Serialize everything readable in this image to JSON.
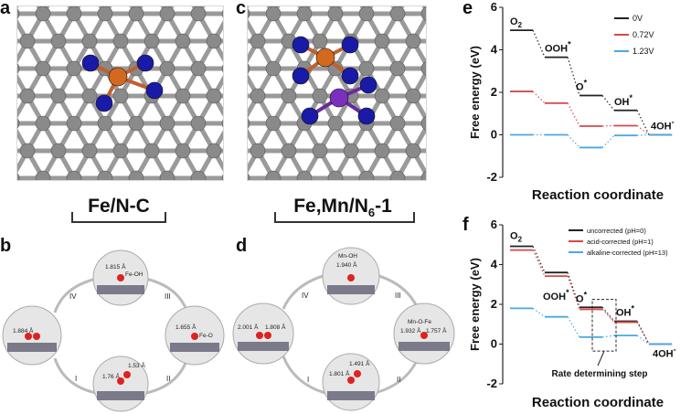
{
  "panels": {
    "a": {
      "letter": "a",
      "caption": "Fe/N-C"
    },
    "b": {
      "letter": "b",
      "labels": [
        "1.815 Å",
        "Fe-OH",
        "1.884 Å",
        "1.655 Å",
        "Fe-O",
        "1.53 Å",
        "1.76 Å"
      ],
      "steps": [
        "I",
        "II",
        "III",
        "IV"
      ]
    },
    "c": {
      "letter": "c",
      "caption_main": "Fe,Mn/N",
      "caption_sub": "6",
      "caption_tail": "-1"
    },
    "d": {
      "letter": "d",
      "labels": [
        "Mn-OH",
        "1.940 Å",
        "2.001 Å",
        "1.808 Å",
        "Mn-O-Fe",
        "1.932 Å",
        "1.757 Å",
        "1.491 Å",
        "1.801 Å"
      ],
      "steps": [
        "I",
        "II",
        "III",
        "IV"
      ]
    },
    "e": {
      "letter": "e"
    },
    "f": {
      "letter": "f"
    }
  },
  "colors": {
    "fe_atom": "#d2691e",
    "mn_atom": "#7b2fbe",
    "n_atom": "#1a1aa8",
    "c_atom": "#8a8a8a",
    "bond": "#9a9a9a",
    "black_series": "#222222",
    "red_series": "#d8484a",
    "blue_series": "#4aa8e0"
  },
  "chart_data": [
    {
      "type": "line",
      "panel": "e",
      "ylabel": "Free energy (eV)",
      "xlabel": "Reaction coordinate",
      "ylim": [
        -2,
        6
      ],
      "yticks": [
        -2,
        0,
        2,
        4,
        6
      ],
      "categories": [
        "O2",
        "OOH*",
        "O*",
        "OH*",
        "4OH-"
      ],
      "category_labels": [
        {
          "main": "O",
          "sub": "2",
          "sup": ""
        },
        {
          "main": "OOH",
          "sub": "",
          "sup": "*"
        },
        {
          "main": "O",
          "sub": "",
          "sup": "*"
        },
        {
          "main": "OH",
          "sub": "",
          "sup": "*"
        },
        {
          "main": "4OH",
          "sub": "",
          "sup": "-"
        }
      ],
      "series": [
        {
          "name": "0V",
          "color": "#222222",
          "values": [
            4.92,
            3.65,
            1.85,
            1.15,
            0.0
          ]
        },
        {
          "name": "0.72V",
          "color": "#d8484a",
          "values": [
            2.04,
            1.49,
            0.41,
            0.43,
            0.0
          ]
        },
        {
          "name": "1.23V",
          "color": "#4aa8e0",
          "values": [
            0.0,
            0.0,
            -0.6,
            -0.03,
            0.0
          ]
        }
      ],
      "legend_position": "top-right"
    },
    {
      "type": "line",
      "panel": "f",
      "ylabel": "Free energy (eV)",
      "xlabel": "Reaction coordinate",
      "ylim": [
        -2,
        6
      ],
      "yticks": [
        -2,
        0,
        2,
        4,
        6
      ],
      "categories": [
        "O2",
        "OOH*",
        "O*",
        "OH*",
        "4OH-"
      ],
      "category_labels": [
        {
          "main": "O",
          "sub": "2",
          "sup": ""
        },
        {
          "main": "OOH",
          "sub": "",
          "sup": "*"
        },
        {
          "main": "O",
          "sub": "",
          "sup": "*"
        },
        {
          "main": "OH",
          "sub": "",
          "sup": "*"
        },
        {
          "main": "4OH",
          "sub": "",
          "sup": "-"
        }
      ],
      "series": [
        {
          "name": "uncorrected (pH=0)",
          "color": "#222222",
          "values": [
            4.92,
            3.6,
            1.85,
            1.15,
            0.0
          ]
        },
        {
          "name": "acid-corrected (pH=1)",
          "color": "#d8484a",
          "values": [
            4.73,
            3.42,
            1.75,
            1.1,
            0.0
          ]
        },
        {
          "name": "alkaline-corrected (pH=13)",
          "color": "#4aa8e0",
          "values": [
            1.8,
            1.37,
            0.35,
            0.43,
            0.0
          ]
        }
      ],
      "annotation": "Rate determining step",
      "legend_position": "top-right"
    }
  ]
}
